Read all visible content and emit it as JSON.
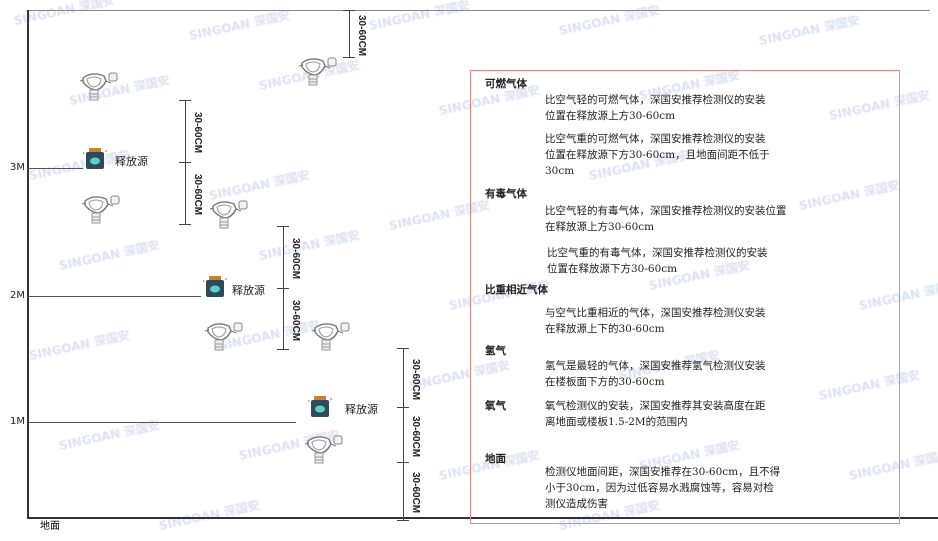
{
  "watermark": "SINGOAN 深国安",
  "levels": {
    "l3": "3M",
    "l2": "2M",
    "l1": "1M",
    "floor": "地面"
  },
  "dimension_label": "30-60CM",
  "source_label": "释放源",
  "colors": {
    "frame": "#333333",
    "box_border": "#ee8888",
    "source_body": "#2f4a5a",
    "source_cap": "#c8822a",
    "source_face": "#5ad0c8"
  },
  "panel": {
    "combustible": {
      "title": "可燃气体",
      "light": [
        "比空气轻的可燃气体，深国安推荐检测仪的安装",
        "位置在释放源上方30-60cm"
      ],
      "heavy": [
        "比空气重的可燃气体，深国安推荐检测仪的安装",
        "位置在释放源下方30-60cm，且地面间距不低于",
        "30cm"
      ]
    },
    "toxic": {
      "title": "有毒气体",
      "light": [
        "比空气轻的有毒气体，深国安推荐检测仪的安装位置",
        "在释放源上方30-60cm"
      ],
      "heavy": [
        "比空气重的有毒气体，深国安推荐检测仪的安装",
        "位置在释放源下方30-60cm"
      ]
    },
    "similar": {
      "title": "比重相近气体",
      "lines": [
        "与空气比重相近的气体，深国安推荐检测仪安装",
        "在释放源上下的30-60cm"
      ]
    },
    "hydrogen": {
      "title": "氢气",
      "lines": [
        "氢气是最轻的气体，深国安推荐氢气检测仪安装",
        "在楼板面下方的30-60cm"
      ]
    },
    "oxygen": {
      "title": "氧气",
      "lines": [
        "氧气检测仪的安装，深国安推荐其安装高度在距",
        "离地面或楼板1.5-2M的范围内"
      ]
    },
    "ground": {
      "title": "地面",
      "lines": [
        "检测仪地面间距，深国安推荐在30-60cm，且不得",
        "小于30cm，因为过低容易水溅腐蚀等，容易对检",
        "测仪造成伤害"
      ]
    }
  }
}
